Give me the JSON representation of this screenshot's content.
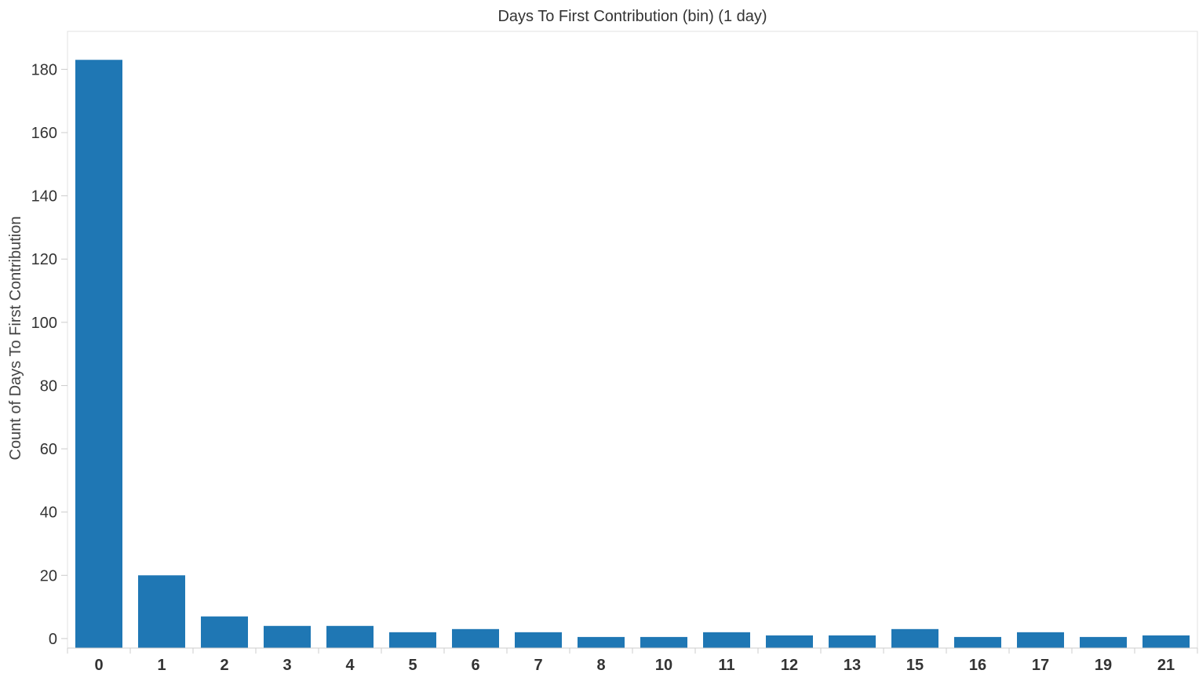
{
  "chart_data": {
    "type": "bar",
    "title": "Days To First Contribution (bin) (1 day)",
    "xlabel": "",
    "ylabel": "Count of Days To First Contribution",
    "categories": [
      "0",
      "1",
      "2",
      "3",
      "4",
      "5",
      "6",
      "7",
      "8",
      "10",
      "11",
      "12",
      "13",
      "15",
      "16",
      "17",
      "19",
      "21"
    ],
    "values": [
      183,
      20,
      7,
      4,
      4,
      2,
      3,
      2,
      0.5,
      0.5,
      2,
      1,
      1,
      3,
      0.5,
      2,
      0.5,
      1
    ],
    "yticks": [
      0,
      20,
      40,
      60,
      80,
      100,
      120,
      140,
      160,
      180
    ],
    "ylim": [
      -3,
      192
    ],
    "grid": false,
    "legend": "none",
    "bar_color": "#1f77b4"
  }
}
